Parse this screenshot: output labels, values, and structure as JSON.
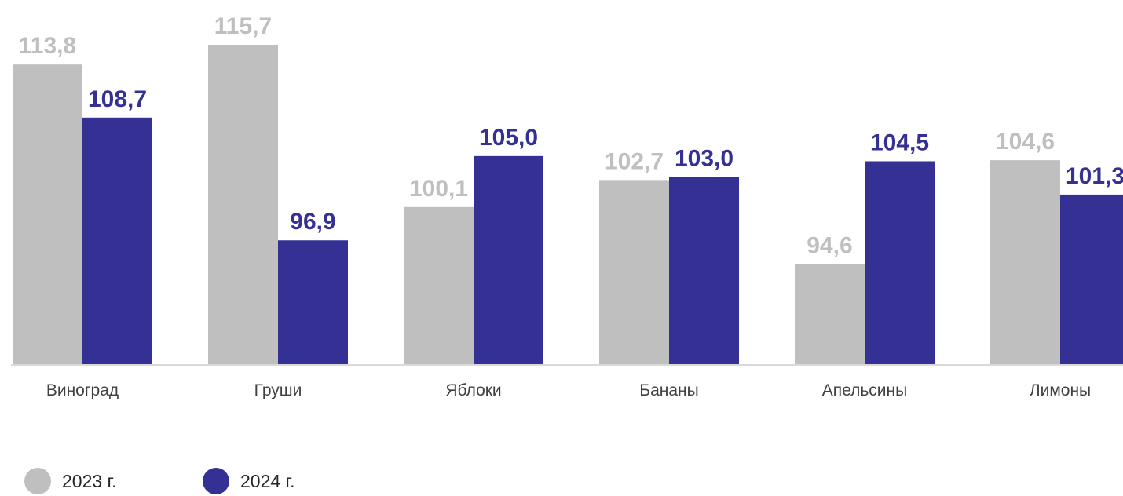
{
  "chart_data": {
    "type": "bar",
    "categories": [
      "Виноград",
      "Груши",
      "Яблоки",
      "Бананы",
      "Апельсины",
      "Лимоны"
    ],
    "series": [
      {
        "name": "2023 г.",
        "color": "#bfbfbf",
        "label_color": "#bfbfbf",
        "values": [
          113.8,
          115.7,
          100.1,
          102.7,
          94.6,
          104.6
        ],
        "labels": [
          "113,8",
          "115,7",
          "100,1",
          "102,7",
          "94,6",
          "104,6"
        ]
      },
      {
        "name": "2024 г.",
        "color": "#353194",
        "label_color": "#353194",
        "values": [
          108.7,
          96.9,
          105.0,
          103.0,
          104.5,
          101.3
        ],
        "labels": [
          "108,7",
          "96,9",
          "105,0",
          "103,0",
          "104,5",
          "101,3"
        ]
      }
    ],
    "legend_position": "bottom-left",
    "grid": false,
    "ylim": [
      85,
      120
    ]
  }
}
